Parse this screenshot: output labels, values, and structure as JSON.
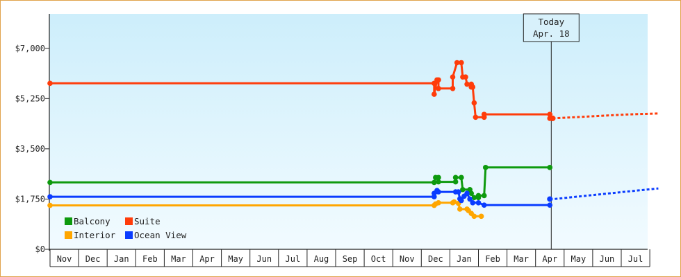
{
  "colors": {
    "frame": "#e0a24a",
    "plot_bg_top": "#cdeefb",
    "plot_bg_bottom": "#f2fbff",
    "axis": "#222222",
    "tooltip_bg": "#d8f1fb"
  },
  "today_marker": {
    "line1": "Today",
    "line2": "Apr. 18",
    "x": 17.55
  },
  "chart_data": {
    "type": "line",
    "title": "",
    "xlabel": "",
    "ylabel": "",
    "x_axis": {
      "categories": [
        "Nov",
        "Dec",
        "Jan",
        "Feb",
        "Mar",
        "Apr",
        "May",
        "Jun",
        "Jul",
        "Aug",
        "Sep",
        "Oct",
        "Nov",
        "Dec",
        "Jan",
        "Feb",
        "Mar",
        "Apr",
        "May",
        "Jun",
        "Jul"
      ],
      "xlim": [
        0,
        21
      ],
      "units": "months since start of first Nov"
    },
    "y_axis": {
      "ticks": [
        0,
        1750,
        3500,
        5250,
        7000
      ],
      "tick_labels": [
        "$0",
        "$1,750",
        "$3,500",
        "$5,250",
        "$7,000"
      ],
      "ylim": [
        0,
        8200
      ]
    },
    "grid": false,
    "legend": {
      "position": "bottom-left",
      "entries": [
        {
          "name": "Balcony",
          "color": "#0e9a0e"
        },
        {
          "name": "Suite",
          "color": "#ff3c0a"
        },
        {
          "name": "Interior",
          "color": "#ffa600"
        },
        {
          "name": "Ocean View",
          "color": "#0a3cff"
        }
      ]
    },
    "series": [
      {
        "name": "Suite",
        "color": "#ff3c0a",
        "points": [
          [
            0,
            5780
          ],
          [
            13.45,
            5780
          ],
          [
            13.45,
            5400
          ],
          [
            13.55,
            5900
          ],
          [
            13.6,
            5900
          ],
          [
            13.6,
            5600
          ],
          [
            14.1,
            5600
          ],
          [
            14.1,
            6000
          ],
          [
            14.25,
            6500
          ],
          [
            14.4,
            6500
          ],
          [
            14.45,
            6000
          ],
          [
            14.55,
            6000
          ],
          [
            14.6,
            5750
          ],
          [
            14.75,
            5750
          ],
          [
            14.75,
            5650
          ],
          [
            14.8,
            5650
          ],
          [
            14.85,
            5100
          ],
          [
            14.9,
            4600
          ],
          [
            15.2,
            4600
          ],
          [
            15.2,
            4700
          ],
          [
            17.5,
            4700
          ],
          [
            17.5,
            4560
          ],
          [
            17.6,
            4560
          ]
        ],
        "projection": [
          [
            17.6,
            4560
          ],
          [
            20.3,
            4700
          ],
          [
            21.3,
            4730
          ]
        ]
      },
      {
        "name": "Balcony",
        "color": "#0e9a0e",
        "points": [
          [
            0,
            2330
          ],
          [
            13.45,
            2330
          ],
          [
            13.5,
            2500
          ],
          [
            13.6,
            2500
          ],
          [
            13.6,
            2350
          ],
          [
            14.2,
            2350
          ],
          [
            14.2,
            2500
          ],
          [
            14.4,
            2500
          ],
          [
            14.45,
            2080
          ],
          [
            14.7,
            2080
          ],
          [
            14.75,
            1950
          ],
          [
            14.85,
            1800
          ],
          [
            15.0,
            1800
          ],
          [
            15.0,
            1870
          ],
          [
            15.2,
            1870
          ],
          [
            15.25,
            2850
          ],
          [
            17.5,
            2850
          ]
        ],
        "projection": []
      },
      {
        "name": "Interior",
        "color": "#ffa600",
        "points": [
          [
            0,
            1530
          ],
          [
            13.45,
            1530
          ],
          [
            13.5,
            1580
          ],
          [
            13.6,
            1620
          ],
          [
            14.1,
            1620
          ],
          [
            14.15,
            1650
          ],
          [
            14.3,
            1600
          ],
          [
            14.35,
            1400
          ],
          [
            14.6,
            1400
          ],
          [
            14.65,
            1350
          ],
          [
            14.75,
            1250
          ],
          [
            14.85,
            1150
          ],
          [
            15.1,
            1150
          ]
        ],
        "projection": []
      },
      {
        "name": "Ocean View",
        "color": "#0a3cff",
        "points": [
          [
            0,
            1830
          ],
          [
            13.45,
            1830
          ],
          [
            13.45,
            1950
          ],
          [
            13.55,
            2050
          ],
          [
            13.6,
            2000
          ],
          [
            14.2,
            2000
          ],
          [
            14.3,
            2000
          ],
          [
            14.35,
            1760
          ],
          [
            14.4,
            1700
          ],
          [
            14.5,
            1850
          ],
          [
            14.6,
            1950
          ],
          [
            14.7,
            1750
          ],
          [
            14.8,
            1620
          ],
          [
            15.0,
            1620
          ],
          [
            15.2,
            1540
          ],
          [
            17.5,
            1540
          ]
        ],
        "projection": [
          [
            17.5,
            1750
          ],
          [
            17.65,
            1750
          ],
          [
            20.3,
            2020
          ],
          [
            21.3,
            2120
          ]
        ]
      }
    ]
  }
}
